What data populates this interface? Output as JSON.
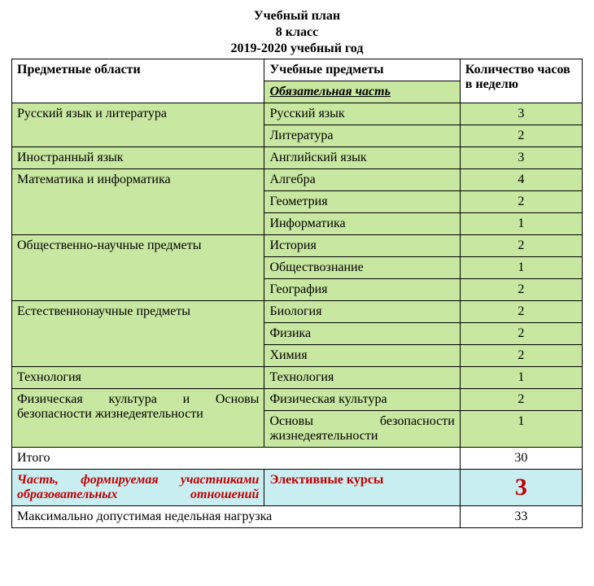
{
  "title": {
    "line1": "Учебный план",
    "line2": "8 класс",
    "line3": "2019-2020 учебный год"
  },
  "headers": {
    "area": "Предметные области",
    "subject": "Учебные предметы",
    "hours": "Количество часов в неделю",
    "mandatory": "Обязательная часть"
  },
  "areas": {
    "rus": "Русский язык и литература",
    "foreign": "Иностранный язык",
    "math": "Математика и информатика",
    "social": "Общественно-научные предметы",
    "nat": "Естественнонаучные предметы",
    "tech": "Технология",
    "pe": "Физическая культура и Основы безопасности жизнедеятельности"
  },
  "subjects": {
    "ruslang": "Русский язык",
    "lit": "Литература",
    "eng": "Английский язык",
    "alg": "Алгебра",
    "geo": "Геометрия",
    "inf": "Информатика",
    "hist": "История",
    "socst": "Обществознание",
    "geog": "География",
    "bio": "Биология",
    "phys": "Физика",
    "chem": "Химия",
    "techs": "Технология",
    "pes": "Физическая культура",
    "obzh": "Основы безопасности жизнедеятельности"
  },
  "hours": {
    "ruslang": "3",
    "lit": "2",
    "eng": "3",
    "alg": "4",
    "geo": "2",
    "inf": "1",
    "hist": "2",
    "socst": "1",
    "geog": "2",
    "bio": "2",
    "phys": "2",
    "chem": "2",
    "techs": "1",
    "pes": "2",
    "obzh": "1"
  },
  "totals": {
    "itogo_label": "Итого",
    "itogo": "30",
    "part_label": "Часть, формируемая участниками образовательных отношений",
    "elective": "Элективные курсы",
    "elective_hours": "3",
    "max_label": "Максимально допустимая недельная нагрузка",
    "max": "33"
  },
  "colors": {
    "green": "#c8e7a1",
    "blue": "#c9eef2",
    "red": "#c00000"
  }
}
